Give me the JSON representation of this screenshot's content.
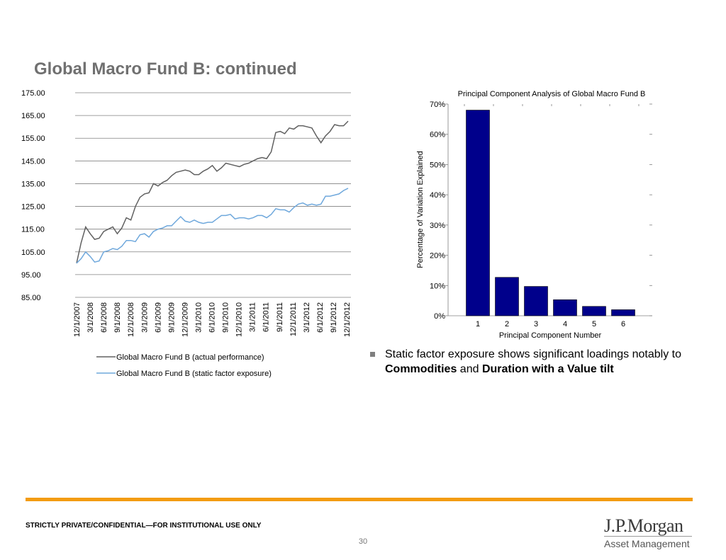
{
  "header": {
    "title": "Global Macro Fund B: continued"
  },
  "bullet": {
    "prefix": "Static factor exposure shows significant loadings notably to ",
    "bold1": "Commodities",
    "middle": " and ",
    "bold2": "Duration with a Value tilt"
  },
  "footer": {
    "confidential": "STRICTLY PRIVATE/CONFIDENTIAL—FOR INSTITUTIONAL USE ONLY",
    "page_number": "30",
    "logo_main": "J.P.Morgan",
    "logo_sub": "Asset Management"
  },
  "chart_data": [
    {
      "type": "line",
      "title": "",
      "xlabel": "",
      "ylabel": "",
      "ylim": [
        85,
        175
      ],
      "yticks": [
        "175.00",
        "165.00",
        "155.00",
        "145.00",
        "135.00",
        "125.00",
        "115.00",
        "105.00",
        "95.00",
        "85.00"
      ],
      "xtick_labels": [
        "12/1/2007",
        "3/1/2008",
        "6/1/2008",
        "9/1/2008",
        "12/1/2008",
        "3/1/2009",
        "6/1/2009",
        "9/1/2009",
        "12/1/2009",
        "3/1/2010",
        "6/1/2010",
        "9/1/2010",
        "12/1/2010",
        "3/1/2011",
        "6/1/2011",
        "9/1/2011",
        "12/1/2011",
        "3/1/2012",
        "6/1/2012",
        "9/1/2012",
        "12/1/2012"
      ],
      "legend_position": "bottom",
      "series": [
        {
          "name": "Global Macro Fund B (actual performance)",
          "color": "#606060",
          "values": [
            100,
            109,
            116,
            113,
            110.5,
            111,
            114,
            115,
            116,
            113,
            115.5,
            120,
            119,
            125,
            129,
            130.5,
            131,
            135,
            134,
            135.5,
            136.5,
            138.5,
            140,
            140.5,
            141,
            140.5,
            139,
            139,
            140.5,
            141.5,
            143,
            140.5,
            142,
            144,
            143.5,
            143,
            142.5,
            143.5,
            144,
            145,
            146,
            146.5,
            146,
            149,
            157.5,
            158,
            157,
            159.5,
            159,
            160.5,
            160.5,
            160,
            159.5,
            156,
            153,
            156,
            158,
            161,
            160.5,
            160.5,
            162.5
          ]
        },
        {
          "name": "Global Macro Fund B (static factor exposure)",
          "color": "#6fa8dc",
          "values": [
            100,
            102,
            105,
            103,
            100.5,
            101,
            105,
            105.5,
            106.5,
            106,
            107.5,
            110,
            110,
            109.5,
            112.5,
            113,
            111.5,
            114,
            115,
            115.5,
            116.5,
            116.5,
            118.5,
            120.5,
            118.5,
            118,
            119,
            118,
            117.5,
            118,
            118,
            119.5,
            121,
            121,
            121.5,
            119.5,
            120,
            120,
            119.5,
            120,
            121,
            121,
            120,
            121.5,
            124,
            123.5,
            123.5,
            122.5,
            124.5,
            126,
            126.5,
            125.5,
            126,
            125.5,
            126,
            129.5,
            129.5,
            130,
            130.5,
            132,
            133
          ]
        }
      ]
    },
    {
      "type": "bar",
      "title": "Principal Component Analysis of Global Macro Fund B",
      "xlabel": "Principal Component Number",
      "ylabel": "Percentage of Variation Explained",
      "ylim": [
        0,
        70
      ],
      "yticks": [
        "0%",
        "10%",
        "20%",
        "30%",
        "40%",
        "50%",
        "60%",
        "70%"
      ],
      "categories": [
        "1",
        "2",
        "3",
        "4",
        "5",
        "6"
      ],
      "values": [
        68,
        12.7,
        9.7,
        5.3,
        3.1,
        2.0
      ],
      "bar_color": "#00008b"
    }
  ]
}
